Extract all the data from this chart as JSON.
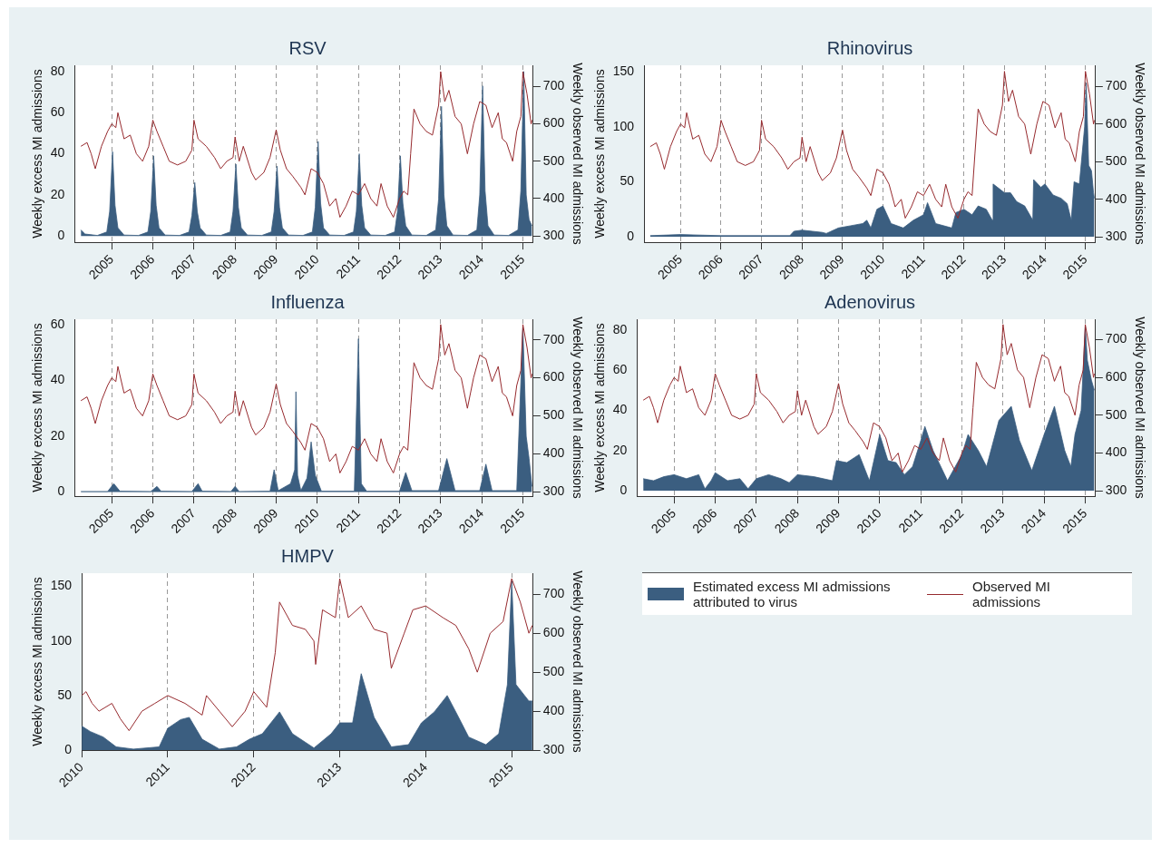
{
  "chart_data": [
    {
      "type": "area",
      "title": "RSV",
      "ylabel": "Weekly excess MI admissions",
      "y2label": "Weekly observed MI admissions",
      "xlim": [
        2004.1,
        2015.25
      ],
      "xticks": [
        2005,
        2006,
        2007,
        2008,
        2009,
        2010,
        2011,
        2012,
        2013,
        2014,
        2015
      ],
      "ylim": [
        -3,
        83
      ],
      "yticks": [
        0,
        20,
        40,
        60,
        80
      ],
      "y2lim": [
        283,
        757
      ],
      "y2ticks": [
        300,
        400,
        500,
        600,
        700
      ],
      "grid": "x",
      "marker": "none",
      "line_style": "solid",
      "series": [
        {
          "type": "area",
          "axis": "y",
          "color": "#3b5e80",
          "x": [
            2004.25,
            2004.35,
            2004.65,
            2004.88,
            2004.95,
            2005.02,
            2005.08,
            2005.15,
            2005.3,
            2005.65,
            2005.88,
            2005.95,
            2006.02,
            2006.08,
            2006.15,
            2006.3,
            2006.65,
            2006.88,
            2006.95,
            2007.02,
            2007.08,
            2007.15,
            2007.3,
            2007.65,
            2007.88,
            2007.95,
            2008.02,
            2008.08,
            2008.15,
            2008.3,
            2008.65,
            2008.88,
            2008.95,
            2009.02,
            2009.08,
            2009.15,
            2009.3,
            2009.65,
            2009.88,
            2009.95,
            2010.02,
            2010.08,
            2010.15,
            2010.3,
            2010.65,
            2010.88,
            2010.95,
            2011.02,
            2011.08,
            2011.15,
            2011.3,
            2011.65,
            2011.88,
            2011.95,
            2012.02,
            2012.08,
            2012.15,
            2012.3,
            2012.65,
            2012.88,
            2012.95,
            2013.02,
            2013.08,
            2013.15,
            2013.3,
            2013.65,
            2013.88,
            2013.95,
            2014.02,
            2014.08,
            2014.15,
            2014.3,
            2014.65,
            2014.88,
            2014.95,
            2015.02,
            2015.08,
            2015.15,
            2015.22
          ],
          "values": [
            3,
            1,
            0.3,
            2,
            12,
            41,
            15,
            4,
            0.5,
            0.3,
            2,
            12,
            39,
            15,
            4,
            0.5,
            0.3,
            2,
            10,
            26,
            12,
            4,
            0.5,
            0.3,
            2,
            12,
            35,
            14,
            4,
            0.5,
            0.3,
            2,
            12,
            34,
            14,
            4,
            0.5,
            0.3,
            2,
            14,
            46,
            16,
            4,
            0.5,
            0.3,
            2,
            12,
            40,
            15,
            4,
            0.5,
            0.3,
            2,
            12,
            39,
            16,
            5,
            0.5,
            0.3,
            3,
            18,
            63,
            20,
            5,
            0.5,
            0.3,
            3,
            20,
            73,
            22,
            5,
            0.5,
            0.3,
            3,
            22,
            80,
            20,
            8,
            5
          ]
        },
        {
          "type": "line",
          "axis": "y2",
          "color": "#962a2e",
          "x": [
            2004.25,
            2004.4,
            2004.5,
            2004.6,
            2004.75,
            2004.9,
            2005.0,
            2005.1,
            2005.15,
            2005.3,
            2005.45,
            2005.6,
            2005.75,
            2005.9,
            2006.0,
            2006.1,
            2006.25,
            2006.4,
            2006.6,
            2006.8,
            2006.95,
            2007.0,
            2007.1,
            2007.3,
            2007.5,
            2007.65,
            2007.8,
            2007.95,
            2008.0,
            2008.1,
            2008.2,
            2008.4,
            2008.5,
            2008.7,
            2008.85,
            2009.0,
            2009.1,
            2009.25,
            2009.4,
            2009.6,
            2009.7,
            2009.85,
            2010.0,
            2010.15,
            2010.3,
            2010.45,
            2010.55,
            2010.7,
            2010.85,
            2011.0,
            2011.15,
            2011.3,
            2011.45,
            2011.55,
            2011.7,
            2011.85,
            2012.0,
            2012.1,
            2012.2,
            2012.27,
            2012.35,
            2012.5,
            2012.65,
            2012.8,
            2012.95,
            2013.0,
            2013.1,
            2013.2,
            2013.35,
            2013.5,
            2013.65,
            2013.8,
            2013.95,
            2014.1,
            2014.25,
            2014.4,
            2014.5,
            2014.6,
            2014.75,
            2014.85,
            2014.95,
            2015.0,
            2015.1,
            2015.2,
            2015.22
          ],
          "values": [
            540,
            550,
            520,
            480,
            540,
            580,
            600,
            590,
            630,
            560,
            570,
            520,
            500,
            540,
            610,
            580,
            540,
            500,
            490,
            500,
            530,
            610,
            560,
            540,
            510,
            480,
            500,
            510,
            565,
            500,
            540,
            470,
            450,
            470,
            510,
            584,
            530,
            480,
            460,
            430,
            410,
            480,
            470,
            440,
            380,
            400,
            350,
            380,
            420,
            410,
            440,
            400,
            380,
            440,
            380,
            350,
            400,
            420,
            410,
            520,
            640,
            600,
            580,
            570,
            650,
            740,
            660,
            690,
            620,
            600,
            520,
            600,
            660,
            650,
            590,
            630,
            560,
            550,
            500,
            580,
            620,
            740,
            680,
            600,
            610
          ]
        }
      ]
    },
    {
      "type": "area",
      "title": "Rhinovirus",
      "ylabel": "Weekly excess MI admissions",
      "y2label": "Weekly observed MI admissions",
      "xlim": [
        2004.1,
        2015.25
      ],
      "xticks": [
        2005,
        2006,
        2007,
        2008,
        2009,
        2010,
        2011,
        2012,
        2013,
        2014,
        2015
      ],
      "ylim": [
        -5,
        156
      ],
      "yticks": [
        0,
        50,
        100,
        150
      ],
      "y2lim": [
        286,
        756
      ],
      "y2ticks": [
        300,
        400,
        500,
        600,
        700
      ],
      "grid": "x",
      "marker": "none",
      "line_style": "solid",
      "series": [
        {
          "type": "area",
          "axis": "y",
          "color": "#3b5e80",
          "x": [
            2004.25,
            2005.0,
            2006.0,
            2007.0,
            2007.7,
            2007.8,
            2008.0,
            2008.5,
            2008.6,
            2008.9,
            2009.2,
            2009.5,
            2009.6,
            2009.7,
            2009.85,
            2010.0,
            2010.2,
            2010.5,
            2010.75,
            2011.0,
            2011.1,
            2011.3,
            2011.7,
            2011.8,
            2012.0,
            2012.2,
            2012.35,
            2012.55,
            2012.7,
            2012.72,
            2013.0,
            2013.15,
            2013.3,
            2013.5,
            2013.7,
            2013.72,
            2013.9,
            2014.0,
            2014.2,
            2014.4,
            2014.55,
            2014.65,
            2014.72,
            2014.85,
            2014.98,
            2015.02,
            2015.08,
            2015.15,
            2015.2,
            2015.22
          ],
          "values": [
            1,
            2,
            1,
            1,
            1,
            5,
            6,
            4,
            3,
            8,
            10,
            12,
            15,
            8,
            25,
            28,
            12,
            8,
            15,
            20,
            31,
            12,
            8,
            22,
            25,
            20,
            28,
            25,
            15,
            48,
            40,
            40,
            32,
            28,
            15,
            52,
            45,
            48,
            38,
            35,
            30,
            15,
            50,
            48,
            100,
            140,
            65,
            60,
            40,
            35
          ]
        },
        {
          "type": "line",
          "axis": "y2",
          "color": "#962a2e",
          "x": [
            2004.25,
            2004.4,
            2004.5,
            2004.6,
            2004.75,
            2004.9,
            2005.0,
            2005.1,
            2005.15,
            2005.3,
            2005.45,
            2005.6,
            2005.75,
            2005.9,
            2006.0,
            2006.1,
            2006.25,
            2006.4,
            2006.6,
            2006.8,
            2006.95,
            2007.0,
            2007.1,
            2007.3,
            2007.5,
            2007.65,
            2007.8,
            2007.95,
            2008.0,
            2008.1,
            2008.2,
            2008.4,
            2008.5,
            2008.7,
            2008.85,
            2009.0,
            2009.1,
            2009.25,
            2009.4,
            2009.6,
            2009.7,
            2009.85,
            2010.0,
            2010.15,
            2010.3,
            2010.45,
            2010.55,
            2010.7,
            2010.85,
            2011.0,
            2011.15,
            2011.3,
            2011.45,
            2011.55,
            2011.7,
            2011.85,
            2012.0,
            2012.1,
            2012.2,
            2012.27,
            2012.35,
            2012.5,
            2012.65,
            2012.8,
            2012.95,
            2013.0,
            2013.1,
            2013.2,
            2013.35,
            2013.5,
            2013.65,
            2013.8,
            2013.95,
            2014.1,
            2014.25,
            2014.4,
            2014.5,
            2014.6,
            2014.75,
            2014.85,
            2014.95,
            2015.0,
            2015.1,
            2015.2,
            2015.22
          ],
          "values": [
            540,
            550,
            520,
            480,
            540,
            580,
            600,
            590,
            630,
            560,
            570,
            520,
            500,
            540,
            610,
            580,
            540,
            500,
            490,
            500,
            530,
            610,
            560,
            540,
            510,
            480,
            500,
            510,
            565,
            500,
            540,
            470,
            450,
            470,
            510,
            584,
            530,
            480,
            460,
            430,
            410,
            480,
            470,
            440,
            380,
            400,
            350,
            380,
            420,
            410,
            440,
            400,
            380,
            440,
            380,
            350,
            400,
            420,
            410,
            520,
            640,
            600,
            580,
            570,
            650,
            740,
            660,
            690,
            620,
            600,
            520,
            600,
            660,
            650,
            590,
            630,
            560,
            550,
            500,
            580,
            620,
            740,
            680,
            600,
            610
          ]
        }
      ]
    },
    {
      "type": "area",
      "title": "Influenza",
      "ylabel": "Weekly excess MI admissions",
      "y2label": "Weekly observed MI admissions",
      "xlim": [
        2004.1,
        2015.25
      ],
      "xticks": [
        2005,
        2006,
        2007,
        2008,
        2009,
        2010,
        2011,
        2012,
        2013,
        2014,
        2015
      ],
      "ylim": [
        -1.5,
        62
      ],
      "yticks": [
        0,
        20,
        40,
        60
      ],
      "y2lim": [
        289,
        754
      ],
      "y2ticks": [
        300,
        400,
        500,
        600,
        700
      ],
      "grid": "x",
      "marker": "none",
      "line_style": "solid",
      "series": [
        {
          "type": "area",
          "axis": "y",
          "color": "#3b5e80",
          "x": [
            2004.25,
            2004.9,
            2005.05,
            2005.2,
            2005.95,
            2006.1,
            2006.2,
            2006.95,
            2007.1,
            2007.2,
            2007.9,
            2008.0,
            2008.1,
            2008.85,
            2008.95,
            2009.05,
            2009.35,
            2009.45,
            2009.48,
            2009.52,
            2009.6,
            2009.75,
            2009.85,
            2009.95,
            2010.1,
            2010.9,
            2011.0,
            2011.07,
            2011.2,
            2012.0,
            2012.15,
            2012.3,
            2012.95,
            2013.15,
            2013.35,
            2013.95,
            2014.1,
            2014.25,
            2014.85,
            2015.0,
            2015.08,
            2015.15,
            2015.22
          ],
          "values": [
            0.2,
            0.2,
            3,
            0.3,
            0.2,
            2,
            0.3,
            0.2,
            3,
            0.3,
            0.2,
            2,
            0.2,
            0.3,
            8,
            0.5,
            3,
            8,
            36,
            6,
            0.5,
            5,
            18,
            6,
            0.3,
            0.3,
            55,
            3,
            0.3,
            0.3,
            7,
            0.5,
            0.5,
            12,
            0.5,
            0.5,
            10,
            0.5,
            0.5,
            59,
            20,
            12,
            2
          ]
        },
        {
          "type": "line",
          "axis": "y2",
          "color": "#962a2e",
          "x": [
            2004.25,
            2004.4,
            2004.5,
            2004.6,
            2004.75,
            2004.9,
            2005.0,
            2005.1,
            2005.15,
            2005.3,
            2005.45,
            2005.6,
            2005.75,
            2005.9,
            2006.0,
            2006.1,
            2006.25,
            2006.4,
            2006.6,
            2006.8,
            2006.95,
            2007.0,
            2007.1,
            2007.3,
            2007.5,
            2007.65,
            2007.8,
            2007.95,
            2008.0,
            2008.1,
            2008.2,
            2008.4,
            2008.5,
            2008.7,
            2008.85,
            2009.0,
            2009.1,
            2009.25,
            2009.4,
            2009.6,
            2009.7,
            2009.85,
            2010.0,
            2010.15,
            2010.3,
            2010.45,
            2010.55,
            2010.7,
            2010.85,
            2011.0,
            2011.15,
            2011.3,
            2011.45,
            2011.55,
            2011.7,
            2011.85,
            2012.0,
            2012.1,
            2012.2,
            2012.27,
            2012.35,
            2012.5,
            2012.65,
            2012.8,
            2012.95,
            2013.0,
            2013.1,
            2013.2,
            2013.35,
            2013.5,
            2013.65,
            2013.8,
            2013.95,
            2014.1,
            2014.25,
            2014.4,
            2014.5,
            2014.6,
            2014.75,
            2014.85,
            2014.95,
            2015.0,
            2015.1,
            2015.2,
            2015.22
          ],
          "values": [
            540,
            550,
            520,
            480,
            540,
            580,
            600,
            590,
            630,
            560,
            570,
            520,
            500,
            540,
            610,
            580,
            540,
            500,
            490,
            500,
            530,
            610,
            560,
            540,
            510,
            480,
            500,
            510,
            565,
            500,
            540,
            470,
            450,
            470,
            510,
            584,
            530,
            480,
            460,
            430,
            410,
            480,
            470,
            440,
            380,
            400,
            350,
            380,
            420,
            410,
            440,
            400,
            380,
            440,
            380,
            350,
            400,
            420,
            410,
            520,
            640,
            600,
            580,
            570,
            650,
            740,
            660,
            690,
            620,
            600,
            520,
            600,
            660,
            650,
            590,
            630,
            560,
            550,
            500,
            580,
            620,
            740,
            680,
            600,
            610
          ]
        }
      ]
    },
    {
      "type": "area",
      "title": "Adenovirus",
      "ylabel": "Weekly excess MI admissions",
      "y2label": "Weekly observed MI admissions",
      "xlim": [
        2004.1,
        2015.25
      ],
      "xticks": [
        2005,
        2006,
        2007,
        2008,
        2009,
        2010,
        2011,
        2012,
        2013,
        2014,
        2015
      ],
      "ylim": [
        -2.7,
        85.3
      ],
      "yticks": [
        0,
        20,
        40,
        60,
        80
      ],
      "y2lim": [
        286,
        754
      ],
      "y2ticks": [
        300,
        400,
        500,
        600,
        700
      ],
      "grid": "x",
      "marker": "none",
      "line_style": "solid",
      "series": [
        {
          "type": "area",
          "axis": "y",
          "color": "#3b5e80",
          "x": [
            2004.25,
            2004.5,
            2004.75,
            2005.0,
            2005.3,
            2005.6,
            2005.75,
            2005.9,
            2006.0,
            2006.3,
            2006.6,
            2006.8,
            2007.0,
            2007.3,
            2007.6,
            2007.8,
            2008.0,
            2008.4,
            2008.85,
            2008.95,
            2009.2,
            2009.5,
            2009.75,
            2010.0,
            2010.2,
            2010.4,
            2010.6,
            2010.8,
            2011.0,
            2011.1,
            2011.3,
            2011.65,
            2012.0,
            2012.15,
            2012.4,
            2012.6,
            2012.9,
            2013.2,
            2013.4,
            2013.7,
            2014.0,
            2014.25,
            2014.5,
            2014.65,
            2014.75,
            2014.9,
            2015.0,
            2015.05,
            2015.15,
            2015.22
          ],
          "values": [
            6,
            5,
            7,
            8,
            6,
            8,
            1,
            5,
            9,
            5,
            6,
            1,
            6,
            8,
            6,
            4,
            8,
            7,
            5,
            15,
            14,
            18,
            5,
            28,
            15,
            14,
            8,
            12,
            25,
            32,
            20,
            5,
            18,
            28,
            20,
            12,
            35,
            42,
            25,
            10,
            28,
            42,
            20,
            12,
            28,
            40,
            82,
            65,
            55,
            50
          ]
        },
        {
          "type": "line",
          "axis": "y2",
          "color": "#962a2e",
          "x": [
            2004.25,
            2004.4,
            2004.5,
            2004.6,
            2004.75,
            2004.9,
            2005.0,
            2005.1,
            2005.15,
            2005.3,
            2005.45,
            2005.6,
            2005.75,
            2005.9,
            2006.0,
            2006.1,
            2006.25,
            2006.4,
            2006.6,
            2006.8,
            2006.95,
            2007.0,
            2007.1,
            2007.3,
            2007.5,
            2007.65,
            2007.8,
            2007.95,
            2008.0,
            2008.1,
            2008.2,
            2008.4,
            2008.5,
            2008.7,
            2008.85,
            2009.0,
            2009.1,
            2009.25,
            2009.4,
            2009.6,
            2009.7,
            2009.85,
            2010.0,
            2010.15,
            2010.3,
            2010.45,
            2010.55,
            2010.7,
            2010.85,
            2011.0,
            2011.15,
            2011.3,
            2011.45,
            2011.55,
            2011.7,
            2011.85,
            2012.0,
            2012.1,
            2012.2,
            2012.27,
            2012.35,
            2012.5,
            2012.65,
            2012.8,
            2012.95,
            2013.0,
            2013.1,
            2013.2,
            2013.35,
            2013.5,
            2013.65,
            2013.8,
            2013.95,
            2014.1,
            2014.25,
            2014.4,
            2014.5,
            2014.6,
            2014.75,
            2014.85,
            2014.95,
            2015.0,
            2015.1,
            2015.2,
            2015.22
          ],
          "values": [
            540,
            550,
            520,
            480,
            540,
            580,
            600,
            590,
            630,
            560,
            570,
            520,
            500,
            540,
            610,
            580,
            540,
            500,
            490,
            500,
            530,
            610,
            560,
            540,
            510,
            480,
            500,
            510,
            565,
            500,
            540,
            470,
            450,
            470,
            510,
            584,
            530,
            480,
            460,
            430,
            410,
            480,
            470,
            440,
            380,
            400,
            350,
            380,
            420,
            410,
            440,
            400,
            380,
            440,
            380,
            350,
            400,
            420,
            410,
            520,
            640,
            600,
            580,
            570,
            650,
            740,
            660,
            690,
            620,
            600,
            520,
            600,
            660,
            650,
            590,
            630,
            560,
            550,
            500,
            580,
            620,
            740,
            680,
            600,
            610
          ]
        }
      ]
    },
    {
      "type": "area",
      "title": "HMPV",
      "ylabel": "Weekly excess MI admissions",
      "y2label": "Weekly observed MI admissions",
      "xlim": [
        2010,
        2015.25
      ],
      "xticks": [
        2010,
        2011,
        2012,
        2013,
        2014,
        2015
      ],
      "ylim": [
        0,
        162
      ],
      "yticks": [
        0,
        50,
        100,
        150
      ],
      "y2lim": [
        300,
        754
      ],
      "y2ticks": [
        300,
        400,
        500,
        600,
        700
      ],
      "grid": "x",
      "marker": "none",
      "line_style": "solid",
      "legend": "right",
      "series": [
        {
          "type": "area",
          "axis": "y",
          "name": "Estimated excess MI admissions attributed to virus",
          "color": "#3b5e80",
          "x": [
            2010.0,
            2010.1,
            2010.25,
            2010.4,
            2010.6,
            2010.9,
            2011.0,
            2011.15,
            2011.25,
            2011.4,
            2011.6,
            2011.8,
            2011.95,
            2012.1,
            2012.25,
            2012.3,
            2012.45,
            2012.7,
            2012.9,
            2013.0,
            2013.15,
            2013.25,
            2013.4,
            2013.6,
            2013.8,
            2013.95,
            2014.1,
            2014.25,
            2014.35,
            2014.5,
            2014.7,
            2014.85,
            2014.95,
            2015.0,
            2015.05,
            2015.15,
            2015.2,
            2015.24
          ],
          "values": [
            22,
            17,
            12,
            3,
            1,
            3,
            20,
            28,
            30,
            10,
            1,
            3,
            10,
            15,
            30,
            35,
            15,
            2,
            15,
            25,
            25,
            70,
            30,
            3,
            5,
            25,
            35,
            50,
            35,
            12,
            5,
            15,
            60,
            155,
            60,
            50,
            45,
            45
          ]
        },
        {
          "type": "line",
          "axis": "y2",
          "name": "Observed MI admissions",
          "color": "#962a2e",
          "x": [
            2010.0,
            2010.05,
            2010.12,
            2010.2,
            2010.35,
            2010.45,
            2010.55,
            2010.7,
            2010.85,
            2011.0,
            2011.2,
            2011.4,
            2011.45,
            2011.6,
            2011.75,
            2011.9,
            2012.0,
            2012.15,
            2012.25,
            2012.3,
            2012.45,
            2012.6,
            2012.7,
            2012.72,
            2012.8,
            2012.95,
            2013.0,
            2013.1,
            2013.25,
            2013.4,
            2013.55,
            2013.6,
            2013.75,
            2013.85,
            2014.0,
            2014.2,
            2014.35,
            2014.5,
            2014.6,
            2014.75,
            2014.9,
            2015.0,
            2015.1,
            2015.2,
            2015.24
          ],
          "values": [
            440,
            450,
            420,
            400,
            420,
            380,
            350,
            400,
            420,
            440,
            420,
            390,
            440,
            400,
            360,
            400,
            450,
            410,
            550,
            680,
            620,
            610,
            580,
            520,
            660,
            640,
            740,
            640,
            670,
            610,
            600,
            510,
            600,
            660,
            670,
            640,
            620,
            560,
            500,
            600,
            630,
            740,
            680,
            600,
            620
          ]
        }
      ]
    }
  ]
}
